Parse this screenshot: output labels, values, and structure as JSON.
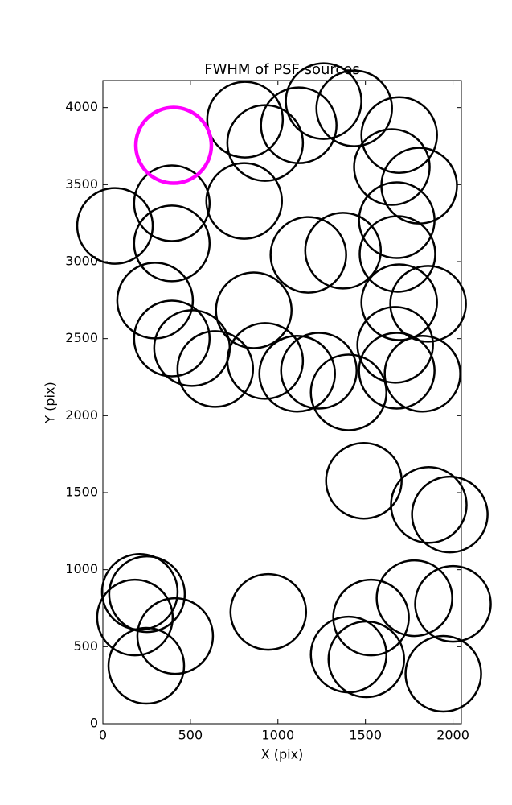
{
  "chart_data": {
    "type": "scatter",
    "title": "FWHM of PSF sources",
    "x_label": "X (pix)",
    "y_label": "Y (pix)",
    "xlim": [
      0,
      2048
    ],
    "ylim": [
      0,
      4176
    ],
    "xticks": [
      0,
      500,
      1000,
      1500,
      2000
    ],
    "yticks": [
      0,
      500,
      1000,
      1500,
      2000,
      2500,
      3000,
      3500,
      4000
    ],
    "series": [
      {
        "color": "#000000",
        "x": [
          812,
          927,
          1119,
          1261,
          1436,
          1693,
          1651,
          1807,
          394,
          807,
          69,
          394,
          1679,
          1174,
          1372,
          1683,
          298,
          862,
          1693,
          1858,
          394,
          509,
          642,
          927,
          1110,
          1234,
          1404,
          1670,
          1679,
          1826,
          1491,
          1862,
          1982,
          211,
          252,
          183,
          248,
          413,
          945,
          1780,
          2000,
          1532,
          1404,
          1505,
          1945
        ],
        "values": [
          3922,
          3770,
          3885,
          4042,
          3995,
          3822,
          3614,
          3493,
          3379,
          3394,
          3232,
          3118,
          3269,
          3044,
          3071,
          3050,
          2747,
          2684,
          2736,
          2726,
          2501,
          2439,
          2303,
          2355,
          2272,
          2292,
          2151,
          2460,
          2292,
          2272,
          1577,
          1420,
          1358,
          856,
          841,
          689,
          376,
          569,
          726,
          815,
          778,
          689,
          449,
          418,
          324
        ]
      },
      {
        "color": "#ff00ff",
        "x": [
          404
        ],
        "values": [
          3755
        ]
      }
    ]
  }
}
